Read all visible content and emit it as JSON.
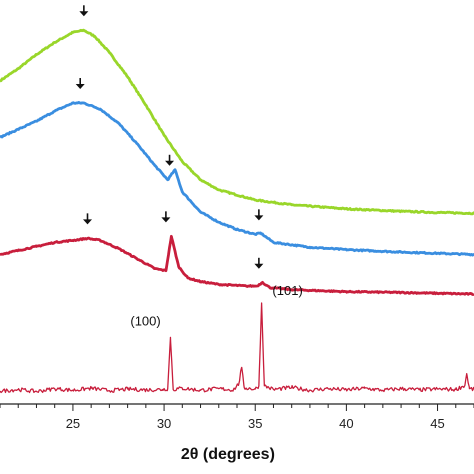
{
  "chart_data": {
    "type": "line",
    "title": "",
    "xlabel": "2θ (degrees)",
    "ylabel": "",
    "xlim": [
      21,
      47
    ],
    "ylim": [
      0,
      100
    ],
    "grid": false,
    "legend": "none",
    "x_ticks": [
      25,
      30,
      35,
      40,
      45
    ],
    "x_tick_labels": [
      "25",
      "30",
      "35",
      "40",
      "45"
    ],
    "series": [
      {
        "color": "#99d62a",
        "points": [
          [
            21,
            80
          ],
          [
            22,
            83
          ],
          [
            23,
            86.5
          ],
          [
            24,
            89.5
          ],
          [
            25,
            92
          ],
          [
            25.6,
            92.5
          ],
          [
            26.2,
            91
          ],
          [
            27,
            87
          ],
          [
            28,
            81
          ],
          [
            29,
            74
          ],
          [
            30,
            66.5
          ],
          [
            31,
            60
          ],
          [
            32,
            55.5
          ],
          [
            33,
            53
          ],
          [
            35,
            50.5
          ],
          [
            37,
            49.3
          ],
          [
            40,
            48.3
          ],
          [
            43,
            47.7
          ],
          [
            45,
            47.4
          ],
          [
            47,
            47.2
          ]
        ]
      },
      {
        "color": "#3a8ee0",
        "points": [
          [
            21,
            66
          ],
          [
            22,
            68
          ],
          [
            23,
            70
          ],
          [
            24,
            72.5
          ],
          [
            25,
            74.5
          ],
          [
            25.6,
            74.5
          ],
          [
            26.5,
            73
          ],
          [
            27.5,
            69.5
          ],
          [
            28.5,
            64.5
          ],
          [
            29.5,
            59
          ],
          [
            30.2,
            55.5
          ],
          [
            30.6,
            58
          ],
          [
            31,
            52.5
          ],
          [
            32,
            47.5
          ],
          [
            33,
            45
          ],
          [
            34,
            43.2
          ],
          [
            35,
            42
          ],
          [
            35.3,
            42.3
          ],
          [
            36,
            40
          ],
          [
            38,
            38.8
          ],
          [
            40,
            38.2
          ],
          [
            43,
            37.6
          ],
          [
            47,
            37
          ]
        ]
      },
      {
        "color": "#c81e3c",
        "points": [
          [
            21,
            37
          ],
          [
            22,
            38
          ],
          [
            23,
            39
          ],
          [
            24,
            40
          ],
          [
            25,
            40.5
          ],
          [
            25.8,
            41
          ],
          [
            26.5,
            40.5
          ],
          [
            27.5,
            38.5
          ],
          [
            28.5,
            36
          ],
          [
            29.5,
            33.5
          ],
          [
            30.1,
            33
          ],
          [
            30.4,
            41.5
          ],
          [
            30.8,
            34
          ],
          [
            31.3,
            31.2
          ],
          [
            32,
            30.3
          ],
          [
            33,
            29.6
          ],
          [
            34.5,
            29.2
          ],
          [
            35.1,
            29.2
          ],
          [
            35.4,
            30.1
          ],
          [
            35.8,
            28.8
          ],
          [
            37,
            28.3
          ],
          [
            40,
            27.8
          ],
          [
            43,
            27.6
          ],
          [
            47,
            27.2
          ]
        ]
      },
      {
        "color": "#c81e3c",
        "points": [
          [
            21,
            3.2
          ],
          [
            22,
            3.6
          ],
          [
            23,
            3.1
          ],
          [
            24,
            3.8
          ],
          [
            25,
            3.4
          ],
          [
            26,
            3.9
          ],
          [
            27,
            3.3
          ],
          [
            28,
            3.7
          ],
          [
            29,
            3.5
          ],
          [
            29.9,
            3.6
          ],
          [
            30.2,
            3.8
          ],
          [
            30.35,
            16.5
          ],
          [
            30.5,
            3.6
          ],
          [
            31,
            3.9
          ],
          [
            32,
            3.4
          ],
          [
            33,
            3.8
          ],
          [
            33.8,
            3.5
          ],
          [
            34.1,
            5
          ],
          [
            34.25,
            9
          ],
          [
            34.4,
            4
          ],
          [
            35,
            3.7
          ],
          [
            35.2,
            4.5
          ],
          [
            35.35,
            25
          ],
          [
            35.5,
            4.5
          ],
          [
            36,
            3.6
          ],
          [
            37,
            4.1
          ],
          [
            38,
            3.4
          ],
          [
            39,
            3.8
          ],
          [
            40,
            3.5
          ],
          [
            41,
            3.9
          ],
          [
            42,
            3.4
          ],
          [
            43,
            3.8
          ],
          [
            44,
            3.5
          ],
          [
            45,
            3.7
          ],
          [
            46,
            3.6
          ],
          [
            46.5,
            4.6
          ],
          [
            46.6,
            7.5
          ],
          [
            46.75,
            3.8
          ],
          [
            47,
            3.6
          ]
        ]
      }
    ],
    "arrows": [
      {
        "x": 25.6,
        "y": 92.5
      },
      {
        "x": 25.4,
        "y": 74.5
      },
      {
        "x": 30.3,
        "y": 55.5
      },
      {
        "x": 35.2,
        "y": 42
      },
      {
        "x": 25.8,
        "y": 41
      },
      {
        "x": 30.1,
        "y": 41.5
      },
      {
        "x": 35.2,
        "y": 30
      }
    ],
    "annotations": [
      {
        "text": "(100)",
        "x": 30.3,
        "y": 16.5
      },
      {
        "text": "(101)",
        "x": 35.35,
        "y": 25
      }
    ],
    "noise_amplitude": 0.7
  }
}
